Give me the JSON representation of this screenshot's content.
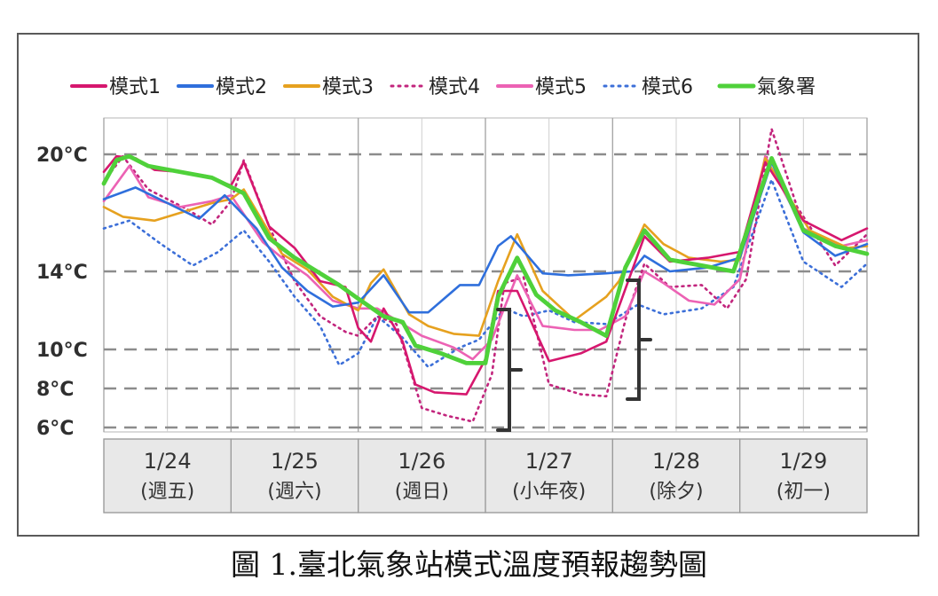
{
  "caption": "圖 1.臺北氣象站模式溫度預報趨勢圖",
  "chart_data": {
    "type": "line",
    "title": "",
    "xlabel": "",
    "ylabel": "",
    "y_unit": "°C",
    "ylim": [
      6,
      21.5
    ],
    "y_ticks": [
      {
        "value": 20,
        "label": "20°C"
      },
      {
        "value": 14,
        "label": "14°C"
      },
      {
        "value": 10,
        "label": "10°C"
      },
      {
        "value": 8,
        "label": "8°C"
      },
      {
        "value": 6,
        "label": "6°C"
      }
    ],
    "x_range_days": [
      0,
      6
    ],
    "days": [
      {
        "date": "1/24",
        "weekday": "(週五)"
      },
      {
        "date": "1/25",
        "weekday": "(週六)"
      },
      {
        "date": "1/26",
        "weekday": "(週日)"
      },
      {
        "date": "1/27",
        "weekday": "(小年夜)"
      },
      {
        "date": "1/28",
        "weekday": "(除夕)"
      },
      {
        "date": "1/29",
        "weekday": "(初一)"
      }
    ],
    "grid": {
      "horizontal_dashed": true,
      "vertical": true
    },
    "legend": {
      "position": "top"
    },
    "series": [
      {
        "name": "模式1",
        "color": "#d6176e",
        "style": "solid",
        "points": [
          [
            0,
            19.1
          ],
          [
            0.1,
            19.9
          ],
          [
            0.25,
            19.8
          ],
          [
            0.4,
            19.2
          ],
          [
            0.6,
            19.1
          ],
          [
            0.8,
            18.9
          ],
          [
            1.0,
            18.4
          ],
          [
            1.1,
            19.6
          ],
          [
            1.3,
            16.3
          ],
          [
            1.5,
            15.2
          ],
          [
            1.7,
            13.5
          ],
          [
            1.9,
            13.2
          ],
          [
            2.0,
            11.1
          ],
          [
            2.1,
            10.4
          ],
          [
            2.2,
            12.1
          ],
          [
            2.35,
            10.4
          ],
          [
            2.45,
            8.2
          ],
          [
            2.6,
            7.8
          ],
          [
            2.85,
            7.7
          ],
          [
            3.0,
            9.5
          ],
          [
            3.1,
            13.0
          ],
          [
            3.25,
            13.0
          ],
          [
            3.5,
            9.4
          ],
          [
            3.75,
            9.8
          ],
          [
            3.95,
            10.4
          ],
          [
            4.25,
            15.8
          ],
          [
            4.45,
            14.5
          ],
          [
            4.75,
            14.7
          ],
          [
            5.0,
            15.0
          ],
          [
            5.2,
            19.6
          ],
          [
            5.5,
            16.6
          ],
          [
            5.8,
            15.6
          ],
          [
            6.0,
            16.2
          ]
        ]
      },
      {
        "name": "模式2",
        "color": "#2f6fdc",
        "style": "solid",
        "points": [
          [
            0,
            17.7
          ],
          [
            0.25,
            18.3
          ],
          [
            0.5,
            17.5
          ],
          [
            0.75,
            16.7
          ],
          [
            0.95,
            17.9
          ],
          [
            1.2,
            16.2
          ],
          [
            1.4,
            14.2
          ],
          [
            1.6,
            13.0
          ],
          [
            1.8,
            12.2
          ],
          [
            2.0,
            12.4
          ],
          [
            2.2,
            13.8
          ],
          [
            2.4,
            11.9
          ],
          [
            2.55,
            11.9
          ],
          [
            2.8,
            13.3
          ],
          [
            2.95,
            13.3
          ],
          [
            3.1,
            15.3
          ],
          [
            3.2,
            15.8
          ],
          [
            3.45,
            13.9
          ],
          [
            3.65,
            13.8
          ],
          [
            3.95,
            13.9
          ],
          [
            4.15,
            14.0
          ],
          [
            4.25,
            14.8
          ],
          [
            4.45,
            14.0
          ],
          [
            4.75,
            14.2
          ],
          [
            5.0,
            14.7
          ],
          [
            5.25,
            19.6
          ],
          [
            5.5,
            16.0
          ],
          [
            5.75,
            14.8
          ],
          [
            6.0,
            15.4
          ]
        ]
      },
      {
        "name": "模式3",
        "color": "#e6a11f",
        "style": "solid",
        "points": [
          [
            0,
            17.3
          ],
          [
            0.15,
            16.8
          ],
          [
            0.4,
            16.6
          ],
          [
            0.6,
            17.0
          ],
          [
            0.85,
            17.5
          ],
          [
            1.0,
            17.7
          ],
          [
            1.1,
            18.2
          ],
          [
            1.4,
            14.9
          ],
          [
            1.6,
            14.1
          ],
          [
            1.8,
            12.7
          ],
          [
            2.0,
            12.0
          ],
          [
            2.1,
            13.4
          ],
          [
            2.2,
            14.1
          ],
          [
            2.4,
            11.8
          ],
          [
            2.55,
            11.2
          ],
          [
            2.75,
            10.8
          ],
          [
            2.95,
            10.7
          ],
          [
            3.1,
            13.5
          ],
          [
            3.25,
            15.9
          ],
          [
            3.45,
            13.0
          ],
          [
            3.7,
            11.5
          ],
          [
            3.95,
            12.7
          ],
          [
            4.05,
            13.5
          ],
          [
            4.25,
            16.4
          ],
          [
            4.4,
            15.4
          ],
          [
            4.6,
            14.7
          ],
          [
            4.85,
            14.5
          ],
          [
            5.0,
            14.6
          ],
          [
            5.2,
            19.8
          ],
          [
            5.55,
            16.1
          ],
          [
            5.85,
            15.2
          ],
          [
            6.0,
            15.3
          ]
        ]
      },
      {
        "name": "模式4",
        "color": "#c2257d",
        "style": "dotted",
        "points": [
          [
            0,
            18.6
          ],
          [
            0.15,
            19.9
          ],
          [
            0.35,
            18.2
          ],
          [
            0.65,
            17.2
          ],
          [
            0.85,
            16.4
          ],
          [
            1.0,
            17.6
          ],
          [
            1.1,
            19.7
          ],
          [
            1.3,
            16.3
          ],
          [
            1.5,
            13.5
          ],
          [
            1.7,
            11.7
          ],
          [
            1.9,
            10.9
          ],
          [
            2.0,
            10.7
          ],
          [
            2.15,
            11.7
          ],
          [
            2.3,
            11.3
          ],
          [
            2.5,
            7.0
          ],
          [
            2.7,
            6.6
          ],
          [
            2.9,
            6.3
          ],
          [
            3.05,
            8.7
          ],
          [
            3.15,
            13.4
          ],
          [
            3.3,
            13.7
          ],
          [
            3.5,
            8.2
          ],
          [
            3.75,
            7.7
          ],
          [
            3.95,
            7.6
          ],
          [
            4.1,
            11.5
          ],
          [
            4.25,
            14.4
          ],
          [
            4.45,
            13.2
          ],
          [
            4.7,
            13.3
          ],
          [
            4.9,
            12.1
          ],
          [
            5.05,
            13.6
          ],
          [
            5.25,
            21.3
          ],
          [
            5.45,
            17.3
          ],
          [
            5.75,
            14.3
          ],
          [
            6.0,
            15.9
          ]
        ]
      },
      {
        "name": "模式5",
        "color": "#ec62b4",
        "style": "solid",
        "points": [
          [
            0,
            17.6
          ],
          [
            0.2,
            19.4
          ],
          [
            0.35,
            17.8
          ],
          [
            0.6,
            17.3
          ],
          [
            0.85,
            17.6
          ],
          [
            1.0,
            17.9
          ],
          [
            1.25,
            15.5
          ],
          [
            1.4,
            14.7
          ],
          [
            1.6,
            13.8
          ],
          [
            1.8,
            12.5
          ],
          [
            2.0,
            12.1
          ],
          [
            2.15,
            12.1
          ],
          [
            2.3,
            11.5
          ],
          [
            2.5,
            10.7
          ],
          [
            2.75,
            10.1
          ],
          [
            2.9,
            9.5
          ],
          [
            3.05,
            10.5
          ],
          [
            3.25,
            13.8
          ],
          [
            3.45,
            11.2
          ],
          [
            3.7,
            11.0
          ],
          [
            3.9,
            11.0
          ],
          [
            4.1,
            11.7
          ],
          [
            4.25,
            14.0
          ],
          [
            4.4,
            13.4
          ],
          [
            4.6,
            12.5
          ],
          [
            4.8,
            12.3
          ],
          [
            5.0,
            13.6
          ],
          [
            5.2,
            19.9
          ],
          [
            5.5,
            16.2
          ],
          [
            5.8,
            15.3
          ],
          [
            6.0,
            15.6
          ]
        ]
      },
      {
        "name": "模式6",
        "color": "#3c6fd8",
        "style": "dotted",
        "points": [
          [
            0,
            16.2
          ],
          [
            0.2,
            16.6
          ],
          [
            0.45,
            15.4
          ],
          [
            0.7,
            14.3
          ],
          [
            0.9,
            15.0
          ],
          [
            1.1,
            16.1
          ],
          [
            1.3,
            14.5
          ],
          [
            1.5,
            12.7
          ],
          [
            1.7,
            11.2
          ],
          [
            1.85,
            9.2
          ],
          [
            2.0,
            9.8
          ],
          [
            2.15,
            11.7
          ],
          [
            2.35,
            10.6
          ],
          [
            2.55,
            9.1
          ],
          [
            2.8,
            10.1
          ],
          [
            2.95,
            10.5
          ],
          [
            3.15,
            12.1
          ],
          [
            3.3,
            11.7
          ],
          [
            3.5,
            12.0
          ],
          [
            3.7,
            11.4
          ],
          [
            3.95,
            11.3
          ],
          [
            4.2,
            12.3
          ],
          [
            4.4,
            11.8
          ],
          [
            4.7,
            12.1
          ],
          [
            4.95,
            13.2
          ],
          [
            5.25,
            18.7
          ],
          [
            5.5,
            14.5
          ],
          [
            5.8,
            13.2
          ],
          [
            6.0,
            14.4
          ]
        ]
      },
      {
        "name": "氣象署",
        "color": "#4fd13a",
        "style": "solid",
        "points": [
          [
            0,
            18.5
          ],
          [
            0.1,
            19.7
          ],
          [
            0.2,
            19.9
          ],
          [
            0.35,
            19.4
          ],
          [
            0.6,
            19.1
          ],
          [
            0.85,
            18.8
          ],
          [
            1.1,
            18.0
          ],
          [
            1.3,
            15.7
          ],
          [
            1.5,
            14.7
          ],
          [
            1.7,
            13.9
          ],
          [
            1.85,
            13.3
          ],
          [
            2.0,
            12.6
          ],
          [
            2.2,
            11.7
          ],
          [
            2.35,
            11.4
          ],
          [
            2.45,
            10.2
          ],
          [
            2.65,
            9.8
          ],
          [
            2.85,
            9.3
          ],
          [
            3.0,
            9.3
          ],
          [
            3.1,
            12.7
          ],
          [
            3.25,
            14.7
          ],
          [
            3.4,
            12.8
          ],
          [
            3.55,
            12.0
          ],
          [
            3.75,
            11.4
          ],
          [
            3.95,
            10.7
          ],
          [
            4.1,
            14.2
          ],
          [
            4.25,
            16.1
          ],
          [
            4.45,
            14.6
          ],
          [
            4.7,
            14.3
          ],
          [
            4.95,
            14.0
          ],
          [
            5.25,
            19.8
          ],
          [
            5.5,
            16.1
          ],
          [
            5.75,
            15.3
          ],
          [
            6.0,
            14.9
          ]
        ]
      }
    ]
  }
}
